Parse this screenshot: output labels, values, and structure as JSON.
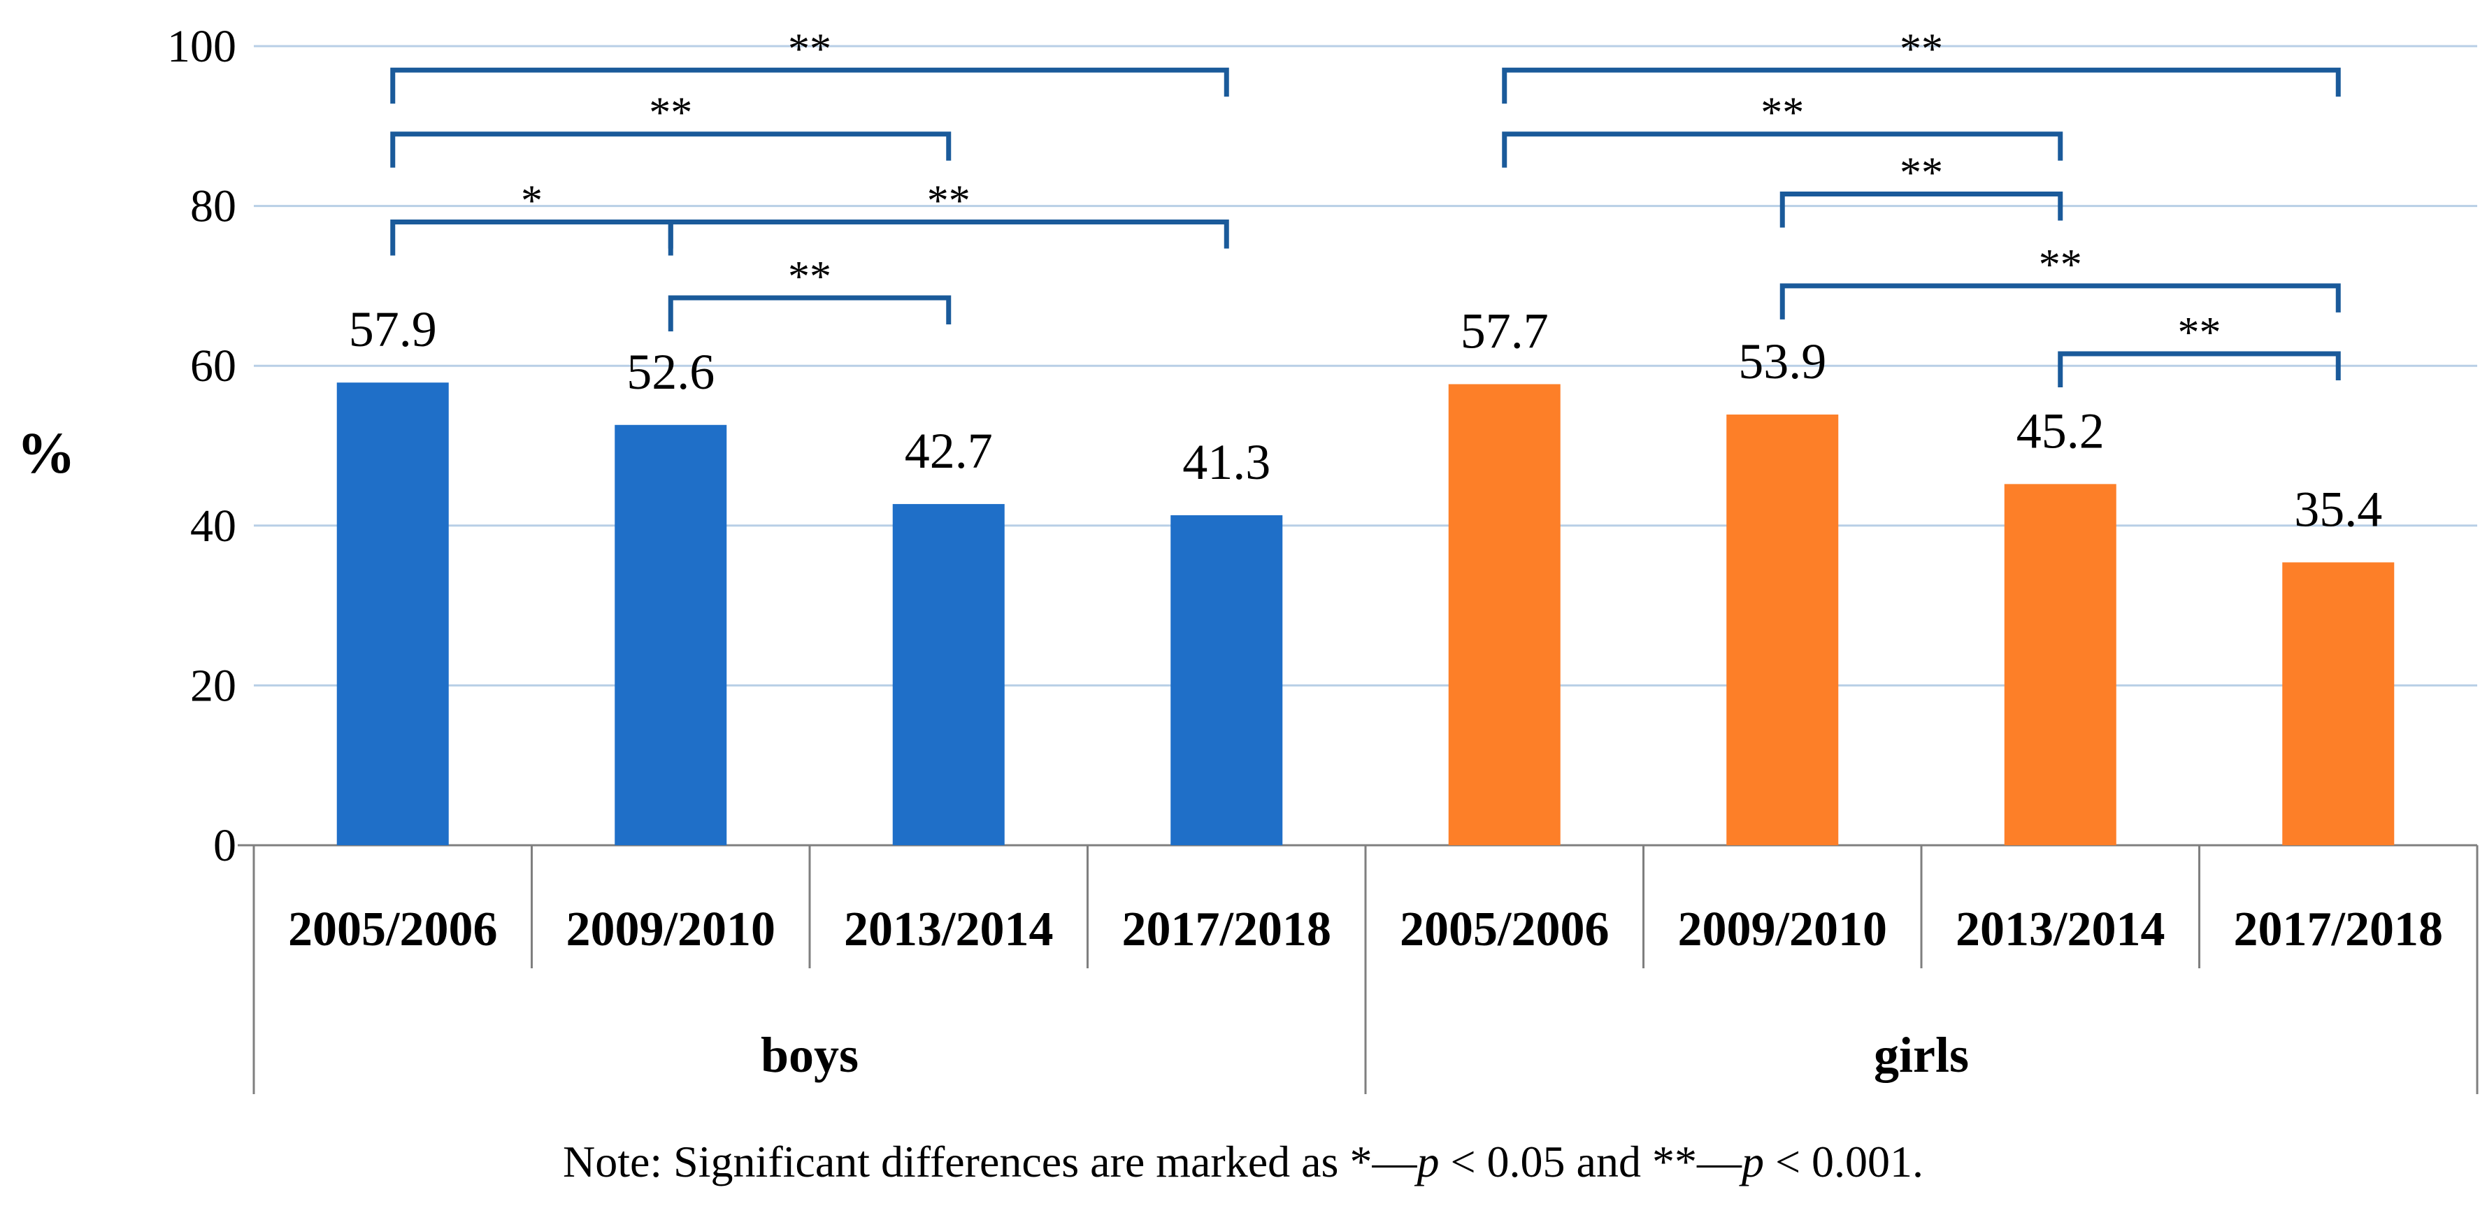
{
  "chart_data": {
    "type": "bar",
    "ylabel": "%",
    "ylim": [
      0,
      100
    ],
    "yticks": [
      0,
      20,
      40,
      60,
      80,
      100
    ],
    "grid": true,
    "groups": [
      {
        "name": "boys",
        "color": "#1f6fc8",
        "categories": [
          "2005/2006",
          "2009/2010",
          "2013/2014",
          "2017/2018"
        ],
        "values": [
          57.9,
          52.6,
          42.7,
          41.3
        ],
        "labels": [
          "57.9",
          "52.6",
          "42.7",
          "41.3"
        ]
      },
      {
        "name": "girls",
        "color": "#fd7f28",
        "categories": [
          "2005/2006",
          "2009/2010",
          "2013/2014",
          "2017/2018"
        ],
        "values": [
          57.7,
          53.9,
          45.2,
          35.4
        ],
        "labels": [
          "57.7",
          "53.9",
          "45.2",
          "35.4"
        ]
      }
    ],
    "significance": [
      {
        "group": 0,
        "from": 0,
        "to": 3,
        "level": 97,
        "label": "**"
      },
      {
        "group": 0,
        "from": 0,
        "to": 2,
        "level": 89,
        "label": "**"
      },
      {
        "group": 0,
        "from": 0,
        "to": 1,
        "level": 78,
        "label": "*"
      },
      {
        "group": 0,
        "from": 1,
        "to": 3,
        "level": 78,
        "label": "**"
      },
      {
        "group": 0,
        "from": 1,
        "to": 2,
        "level": 68.5,
        "label": "**"
      },
      {
        "group": 1,
        "from": 0,
        "to": 3,
        "level": 97,
        "label": "**"
      },
      {
        "group": 1,
        "from": 0,
        "to": 2,
        "level": 89,
        "label": "**"
      },
      {
        "group": 1,
        "from": 1,
        "to": 2,
        "level": 81.5,
        "label": "**"
      },
      {
        "group": 1,
        "from": 1,
        "to": 3,
        "level": 70,
        "label": "**"
      },
      {
        "group": 1,
        "from": 2,
        "to": 3,
        "level": 61.5,
        "label": "**"
      }
    ]
  },
  "note": {
    "prefix": "Note: Significant differences are marked as *—",
    "p1": "p",
    "mid": " < 0.05 and **—",
    "p2": "p",
    "suffix": " < 0.001."
  }
}
